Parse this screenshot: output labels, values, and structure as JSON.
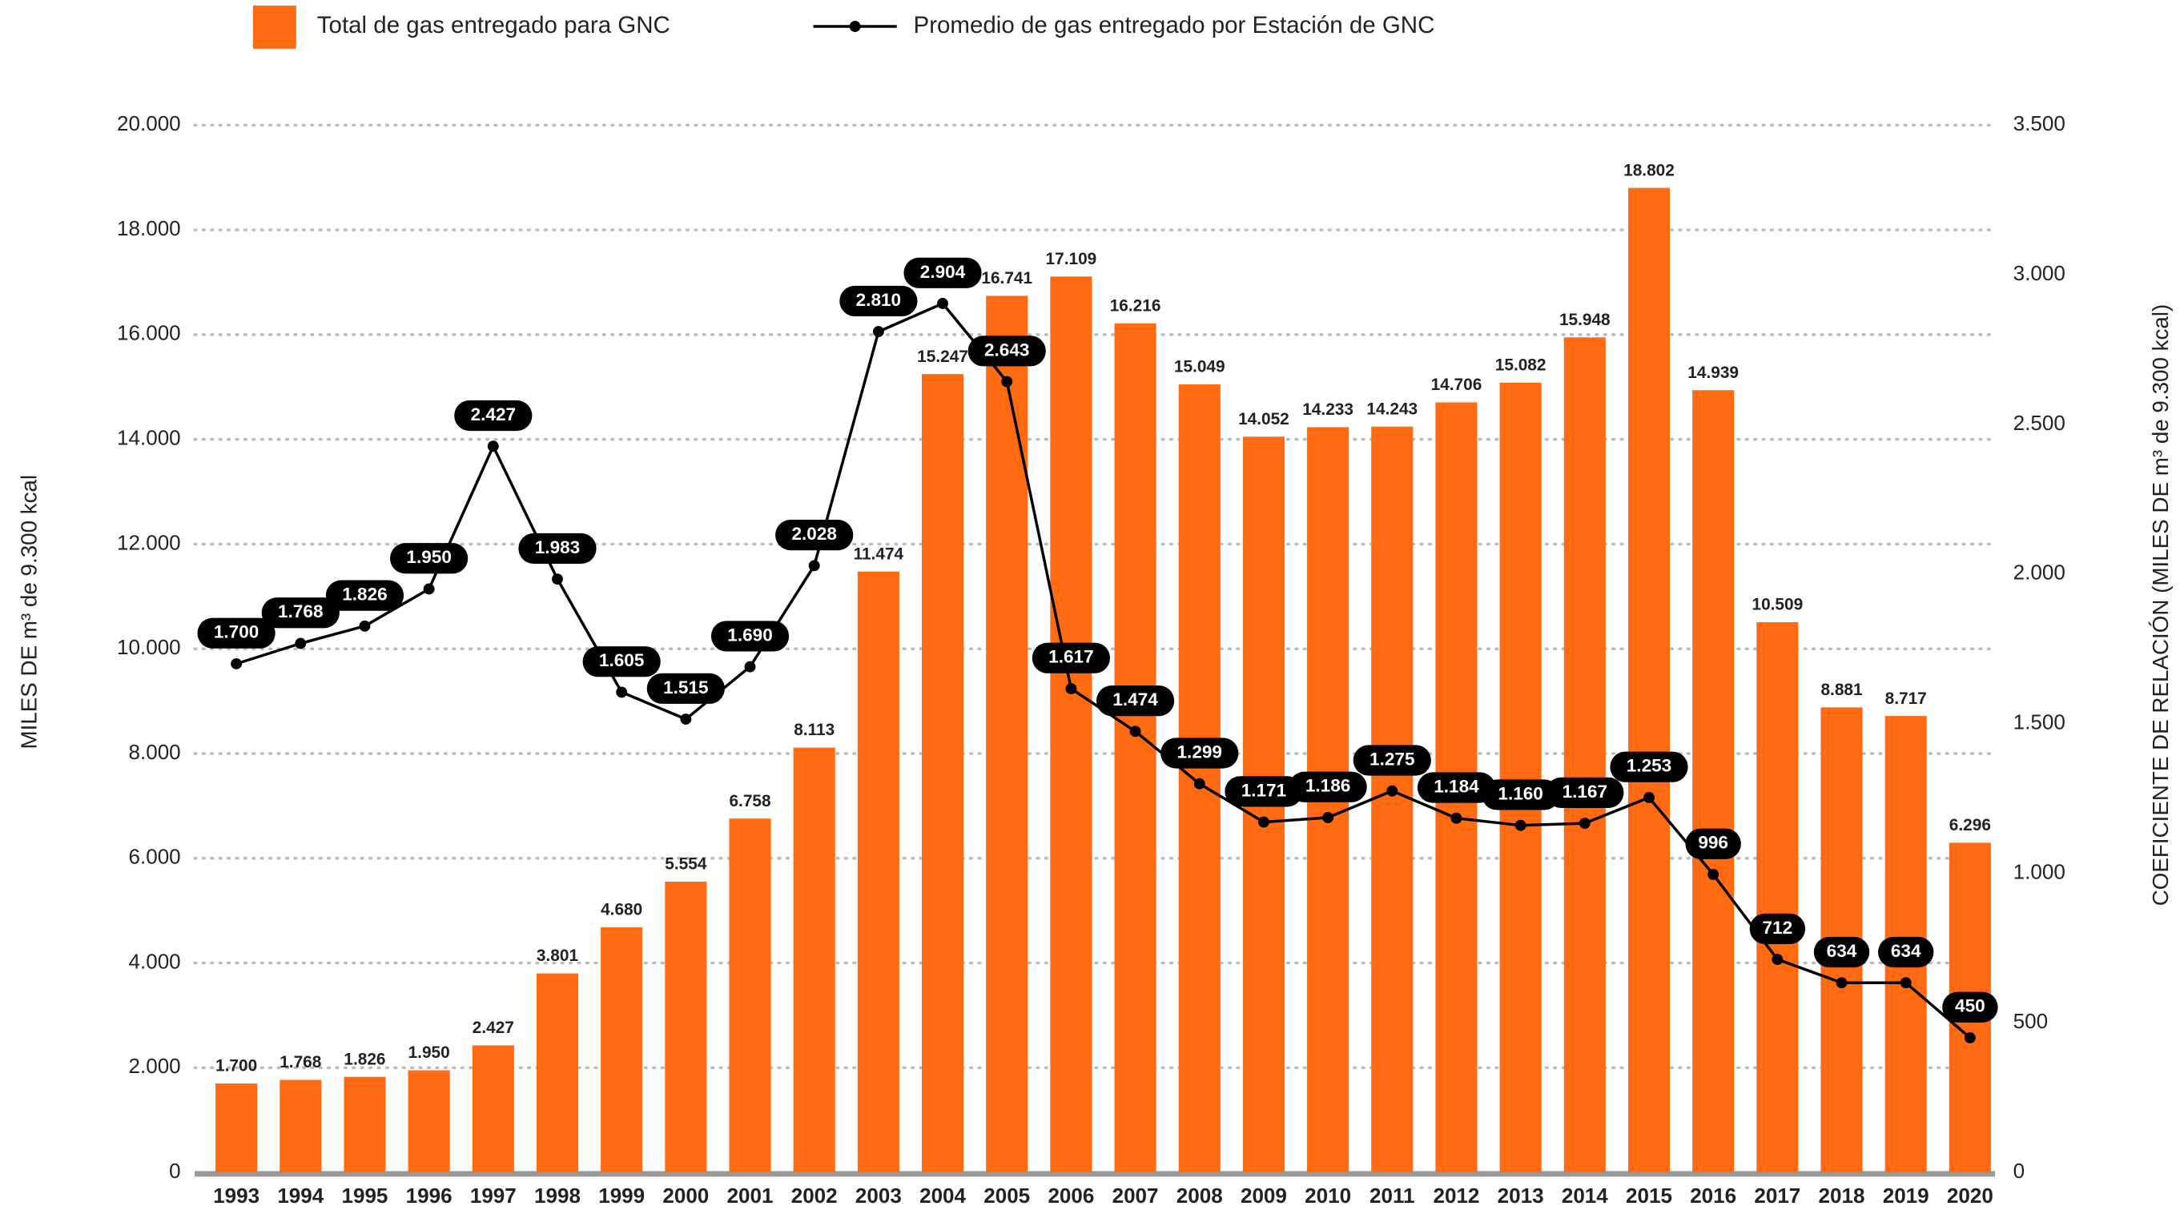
{
  "chart_data": {
    "type": "bar",
    "categories": [
      "1993",
      "1994",
      "1995",
      "1996",
      "1997",
      "1998",
      "1999",
      "2000",
      "2001",
      "2002",
      "2003",
      "2004",
      "2005",
      "2006",
      "2007",
      "2008",
      "2009",
      "2010",
      "2011",
      "2012",
      "2013",
      "2014",
      "2015",
      "2016",
      "2017",
      "2018",
      "2019",
      "2020"
    ],
    "series": [
      {
        "name": "Total de gas entregado para GNC",
        "type": "bar",
        "color": "#ff6a13",
        "values": [
          1700,
          1768,
          1826,
          1950,
          2427,
          3801,
          4680,
          5554,
          6758,
          8113,
          11474,
          15247,
          16741,
          17109,
          16216,
          15049,
          14052,
          14233,
          14243,
          14706,
          15082,
          15948,
          18802,
          14939,
          10509,
          8881,
          8717,
          6296
        ],
        "value_labels": [
          "1.700",
          "1.768",
          "1.826",
          "1.950",
          "2.427",
          "3.801",
          "4.680",
          "5.554",
          "6.758",
          "8.113",
          "11.474",
          "15.247",
          "16.741",
          "17.109",
          "16.216",
          "15.049",
          "14.052",
          "14.233",
          "14.243",
          "14.706",
          "15.082",
          "15.948",
          "18.802",
          "14.939",
          "10.509",
          "8.881",
          "8.717",
          "6.296"
        ]
      },
      {
        "name": "Promedio de gas entregado por Estación de GNC",
        "type": "line",
        "axis": "y2",
        "color": "#000000",
        "values": [
          1700,
          1768,
          1826,
          1950,
          2427,
          1983,
          1605,
          1515,
          1690,
          2028,
          2810,
          2904,
          2643,
          1617,
          1474,
          1299,
          1171,
          1186,
          1275,
          1184,
          1160,
          1167,
          1253,
          996,
          712,
          634,
          634,
          450
        ],
        "value_labels": [
          "1.700",
          "1.768",
          "1.826",
          "1.950",
          "2.427",
          "1.983",
          "1.605",
          "1.515",
          "1.690",
          "2.028",
          "2.810",
          "2.904",
          "2.643",
          "1.617",
          "1.474",
          "1.299",
          "1.171",
          "1.186",
          "1.275",
          "1.184",
          "1.160",
          "1.167",
          "1.253",
          "996",
          "712",
          "634",
          "634",
          "450"
        ]
      }
    ],
    "ylabel": "MILES DE m³ de 9.300 kcal",
    "y2label": "COEFICIENTE DE RELACIÓN (MILES DE m³ de 9.300 kcal)",
    "ylim": [
      0,
      20000
    ],
    "yticks": [
      0,
      {
        "value": 2000,
        "label": "2.000"
      },
      {
        "value": 4000,
        "label": "4.000"
      },
      {
        "value": 6000,
        "label": "6.000"
      },
      {
        "value": 8000,
        "label": "8.000"
      },
      {
        "value": 10000,
        "label": "10.000"
      },
      {
        "value": 12000,
        "label": "12.000"
      },
      {
        "value": 14000,
        "label": "14.000"
      },
      {
        "value": 16000,
        "label": "16.000"
      },
      {
        "value": 18000,
        "label": "18.000"
      },
      {
        "value": 20000,
        "label": "20.000"
      }
    ],
    "y2lim": [
      0,
      3500
    ],
    "y2ticks": [
      0,
      500,
      {
        "value": 1000,
        "label": "1.000"
      },
      {
        "value": 1500,
        "label": "1.500"
      },
      {
        "value": 2000,
        "label": "2.000"
      },
      {
        "value": 2500,
        "label": "2.500"
      },
      {
        "value": 3000,
        "label": "3.000"
      },
      {
        "value": 3500,
        "label": "3.500"
      }
    ],
    "grid": true,
    "legend": "top"
  }
}
